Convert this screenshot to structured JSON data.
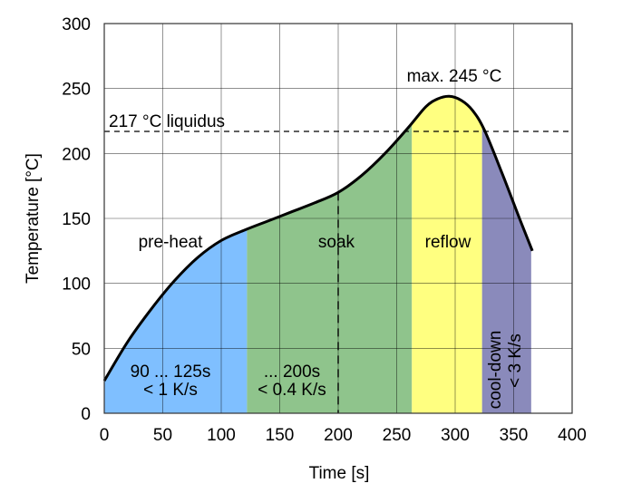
{
  "chart_data": {
    "type": "area",
    "xlabel": "Time [s]",
    "ylabel": "Temperature [°C]",
    "xlim": [
      0,
      400
    ],
    "ylim": [
      0,
      300
    ],
    "xticks": [
      "0",
      "50",
      "100",
      "150",
      "200",
      "250",
      "300",
      "350",
      "400"
    ],
    "yticks": [
      "0",
      "50",
      "100",
      "150",
      "200",
      "250",
      "300"
    ],
    "grid": true,
    "curve": {
      "x": [
        0,
        20,
        40,
        60,
        80,
        100,
        120,
        140,
        160,
        180,
        200,
        220,
        240,
        260,
        275,
        285,
        295,
        305,
        315,
        325,
        340,
        355,
        366
      ],
      "y": [
        25,
        55,
        80,
        102,
        120,
        133,
        141,
        148,
        155,
        162,
        170,
        183,
        200,
        220,
        236,
        242,
        244,
        241,
        233,
        218,
        185,
        150,
        125
      ]
    },
    "regions": [
      {
        "name": "pre-heat",
        "from": 0,
        "to": 122,
        "color": "#7fbfff",
        "note": [
          "90 ... 125s",
          "< 1 K/s"
        ]
      },
      {
        "name": "soak",
        "from": 122,
        "to": 263,
        "color": "#8fc48c",
        "note": [
          "... 200s",
          "< 0.4 K/s"
        ]
      },
      {
        "name": "reflow",
        "from": 263,
        "to": 323,
        "color": "#ffff80",
        "note": []
      },
      {
        "name": "cool-down",
        "from": 323,
        "to": 365,
        "color": "#8a8abb",
        "note": [
          "< 3 K/s"
        ]
      }
    ],
    "annotations": {
      "liquidus": {
        "value": 217,
        "label": "217 °C liquidus"
      },
      "max": {
        "value": 245,
        "label": "max. 245 °C"
      },
      "soak_marker": 200
    }
  }
}
